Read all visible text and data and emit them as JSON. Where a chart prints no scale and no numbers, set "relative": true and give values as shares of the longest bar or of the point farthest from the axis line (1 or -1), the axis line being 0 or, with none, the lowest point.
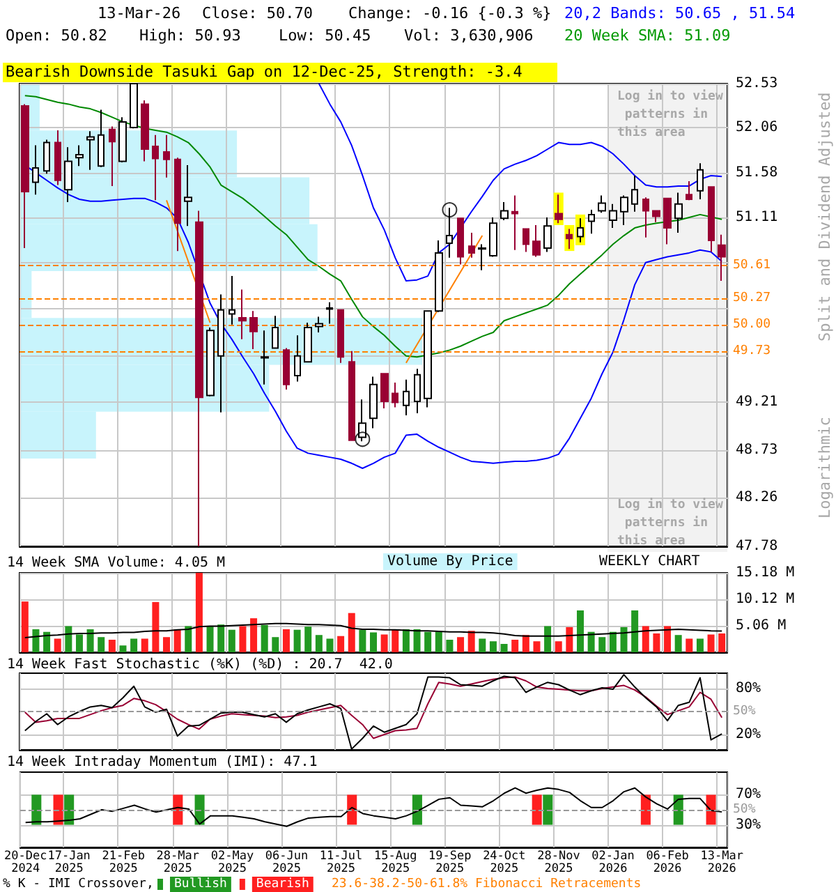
{
  "chart_data": [
    {
      "type": "candlestick",
      "log": true,
      "grid": true,
      "tick_labels": "y",
      "ylabel": "Split and Dividend Adjusted",
      "categories": [
        null,
        null,
        null,
        null,
        null,
        null,
        null,
        null,
        null,
        null,
        null,
        null,
        null,
        null,
        null,
        null,
        null,
        null,
        null,
        null,
        null,
        null,
        null,
        null,
        null,
        null,
        null,
        null,
        null,
        null,
        null,
        null,
        null,
        null,
        null,
        null,
        null,
        null,
        null,
        null,
        null,
        null,
        null,
        null,
        null,
        null,
        null,
        null,
        null,
        null,
        null,
        null,
        null,
        null,
        null,
        null,
        null,
        null,
        null,
        null,
        null,
        null,
        null,
        null,
        null
      ],
      "ylim": [
        47.78,
        52.53
      ],
      "yticks": [
        47.78,
        48.26,
        48.73,
        49.21,
        {
          "value": 49.68,
          "label": null
        },
        {
          "value": 50.16,
          "label": null
        },
        {
          "value": 50.64,
          "label": null
        },
        51.11,
        51.58,
        52.06,
        52.53
      ],
      "ohlc": [
        [
          52.29,
          52.31,
          50.79,
          51.38
        ],
        [
          51.48,
          51.87,
          51.35,
          51.63
        ],
        [
          51.6,
          51.93,
          51.57,
          51.9
        ],
        [
          51.9,
          52.03,
          51.45,
          51.5
        ],
        [
          51.4,
          51.85,
          51.27,
          51.7
        ],
        [
          51.74,
          51.87,
          51.65,
          51.77
        ],
        [
          51.93,
          52.02,
          51.61,
          51.96
        ],
        [
          51.65,
          52.25,
          51.64,
          51.98
        ],
        [
          52.04,
          52.07,
          51.44,
          51.91
        ],
        [
          51.7,
          52.17,
          51.69,
          52.12
        ],
        [
          52.06,
          52.53,
          52.05,
          52.53
        ],
        [
          52.31,
          52.35,
          51.7,
          51.83
        ],
        [
          51.86,
          51.98,
          51.29,
          51.73
        ],
        [
          51.8,
          51.98,
          51.53,
          51.72
        ],
        [
          51.72,
          51.74,
          50.76,
          51.05
        ],
        [
          51.28,
          51.66,
          51.02,
          51.32
        ],
        [
          51.06,
          51.18,
          47.78,
          49.26
        ],
        [
          49.28,
          49.97,
          49.27,
          49.94
        ],
        [
          49.68,
          50.31,
          49.11,
          50.15
        ],
        [
          50.11,
          50.5,
          50.0,
          50.15
        ],
        [
          50.07,
          50.36,
          49.85,
          50.04
        ],
        [
          50.07,
          50.14,
          49.75,
          49.93
        ],
        [
          49.66,
          49.94,
          49.39,
          49.67
        ],
        [
          49.76,
          50.09,
          49.76,
          49.97
        ],
        [
          49.74,
          49.76,
          49.34,
          49.39
        ],
        [
          49.48,
          49.89,
          49.42,
          49.68
        ],
        [
          49.62,
          50.02,
          49.62,
          49.97
        ],
        [
          49.98,
          50.08,
          49.92,
          50.01
        ],
        [
          50.16,
          50.23,
          50.01,
          50.17
        ],
        [
          50.15,
          50.15,
          49.61,
          49.67
        ],
        [
          49.62,
          49.73,
          48.83,
          48.83
        ],
        [
          48.86,
          49.24,
          48.82,
          49.0
        ],
        [
          49.05,
          49.47,
          48.95,
          49.39
        ],
        [
          49.5,
          49.5,
          49.15,
          49.22
        ],
        [
          49.3,
          49.41,
          49.16,
          49.21
        ],
        [
          49.18,
          49.44,
          49.08,
          49.32
        ],
        [
          49.22,
          49.55,
          49.1,
          49.49
        ],
        [
          49.25,
          50.14,
          49.16,
          50.14
        ],
        [
          50.14,
          50.87,
          50.13,
          50.74
        ],
        [
          50.84,
          51.21,
          50.69,
          50.92
        ],
        [
          51.1,
          51.1,
          50.62,
          50.7
        ],
        [
          50.81,
          50.95,
          50.69,
          50.74
        ],
        [
          50.78,
          50.83,
          50.56,
          50.79
        ],
        [
          50.71,
          51.11,
          50.7,
          51.05
        ],
        [
          51.1,
          51.27,
          51.08,
          51.18
        ],
        [
          51.17,
          51.34,
          50.77,
          51.15
        ],
        [
          50.99,
          50.99,
          50.75,
          50.83
        ],
        [
          50.86,
          51.03,
          50.7,
          50.72
        ],
        [
          50.79,
          51.11,
          50.75,
          51.02
        ],
        [
          51.15,
          51.35,
          51.05,
          51.09
        ],
        [
          50.93,
          50.99,
          50.78,
          50.89
        ],
        [
          50.91,
          51.1,
          50.85,
          51.0
        ],
        [
          51.07,
          51.19,
          50.94,
          51.14
        ],
        [
          51.18,
          51.34,
          51.16,
          51.26
        ],
        [
          51.08,
          51.25,
          51.0,
          51.18
        ],
        [
          51.17,
          51.34,
          51.03,
          51.32
        ],
        [
          51.25,
          51.55,
          51.17,
          51.4
        ],
        [
          51.3,
          51.32,
          50.9,
          51.18
        ],
        [
          51.18,
          51.18,
          51.06,
          51.12
        ],
        [
          51.31,
          51.31,
          50.83,
          51.0
        ],
        [
          51.1,
          51.37,
          50.95,
          51.25
        ],
        [
          51.35,
          51.49,
          51.29,
          51.3
        ],
        [
          51.39,
          51.68,
          51.3,
          51.61
        ],
        [
          51.43,
          51.43,
          50.75,
          50.87
        ],
        [
          50.82,
          50.93,
          50.45,
          50.7
        ]
      ],
      "colors": [
        "#990033",
        "#ffffff",
        "#ffffff",
        "#990033",
        "#ffffff",
        "#ffffff",
        "#ffffff",
        "#ffffff",
        "#990033",
        "#ffffff",
        "#ffffff",
        "#990033",
        "#990033",
        "#990033",
        "#990033",
        "#ffffff",
        "#990033",
        "#ffffff",
        "#ffffff",
        "#ffffff",
        "#990033",
        "#990033",
        "#ffffff",
        "#ffffff",
        "#990033",
        "#ffffff",
        "#ffffff",
        "#ffffff",
        "#ffffff",
        "#990033",
        "#990033",
        "#ffffff",
        "#ffffff",
        "#990033",
        "#990033",
        "#ffffff",
        "#ffffff",
        "#ffffff",
        "#ffffff",
        "#ffffff",
        "#990033",
        "#990033",
        "#ffffff",
        "#ffffff",
        "#ffffff",
        "#990033",
        "#990033",
        "#990033",
        "#ffffff",
        "#990033",
        "#990033",
        "#ffffff",
        "#ffffff",
        "#ffffff",
        "#ffffff",
        "#ffffff",
        "#ffffff",
        "#990033",
        "#990033",
        "#990033",
        "#ffffff",
        "#990033",
        "#ffffff",
        "#990033",
        "#990033"
      ],
      "series": [
        {
          "type": "line",
          "color": "#0000ff",
          "values": [
            null,
            null,
            null,
            null,
            null,
            null,
            null,
            null,
            null,
            null,
            null,
            null,
            null,
            null,
            null,
            null,
            null,
            null,
            null,
            null,
            null,
            null,
            null,
            null,
            null,
            null,
            null,
            52.53,
            52.31,
            52.12,
            51.87,
            51.55,
            51.21,
            50.98,
            50.69,
            50.45,
            50.46,
            50.5,
            50.74,
            50.83,
            null,
            51.17,
            51.33,
            51.5,
            51.62,
            51.67,
            51.71,
            51.76,
            51.83,
            51.9,
            51.88,
            51.88,
            51.9,
            51.86,
            51.78,
            51.67,
            51.55,
            51.45,
            51.43,
            51.43,
            51.44,
            51.44,
            51.51,
            51.55,
            51.54
          ]
        },
        {
          "type": "line",
          "color": "#0000ff",
          "values": [
            51.66,
            51.58,
            51.5,
            51.42,
            51.35,
            51.3,
            51.28,
            51.28,
            51.29,
            51.3,
            51.31,
            51.31,
            51.27,
            51.21,
            51.1,
            50.85,
            null,
            50.22,
            50.01,
            49.85,
            49.67,
            49.5,
            49.3,
            49.12,
            48.92,
            48.75,
            48.7,
            48.68,
            48.66,
            48.64,
            48.6,
            48.55,
            48.6,
            48.66,
            48.7,
            48.88,
            48.89,
            48.82,
            48.76,
            48.71,
            48.66,
            48.62,
            48.61,
            48.6,
            48.61,
            48.62,
            48.62,
            48.63,
            48.65,
            48.69,
            48.85,
            49.05,
            49.25,
            49.5,
            49.72,
            50.05,
            50.41,
            50.64,
            50.67,
            50.7,
            50.72,
            50.74,
            50.77,
            50.75,
            50.65
          ]
        },
        {
          "type": "line",
          "color": "#008800",
          "values": [
            52.4,
            52.39,
            52.36,
            52.33,
            52.31,
            52.28,
            52.26,
            52.22,
            52.17,
            52.12,
            null,
            52.05,
            52.03,
            52.01,
            51.96,
            51.9,
            51.78,
            51.64,
            51.45,
            51.38,
            51.31,
            51.22,
            51.12,
            51.02,
            50.93,
            50.8,
            50.67,
            50.6,
            50.52,
            50.45,
            50.26,
            50.08,
            49.98,
            49.89,
            49.78,
            49.68,
            49.67,
            null,
            49.71,
            49.74,
            49.78,
            49.83,
            49.88,
            49.92,
            50.04,
            50.08,
            50.12,
            50.16,
            50.2,
            50.3,
            50.42,
            50.52,
            50.62,
            50.72,
            50.83,
            50.92,
            51.0,
            51.03,
            51.05,
            null,
            51.08,
            51.11,
            51.14,
            null,
            51.09
          ]
        },
        {
          "type": "line",
          "color": "#ff8000",
          "values": [
            null,
            null,
            null,
            null,
            null,
            null,
            null,
            null,
            null,
            null,
            null,
            null,
            null,
            51.29,
            null,
            null,
            null,
            50.02,
            null,
            null,
            null,
            null,
            null,
            null,
            null,
            null,
            null,
            null,
            null,
            null,
            null,
            null,
            null,
            null,
            null,
            null,
            null,
            null,
            null,
            null,
            null,
            null,
            null,
            null,
            null,
            null,
            null,
            null,
            null,
            null,
            null,
            null,
            null,
            null,
            null,
            null,
            null,
            null,
            null,
            null,
            null,
            null,
            null,
            null,
            null
          ]
        },
        {
          "type": "line",
          "color": "#ff8000",
          "values": [
            null,
            null,
            null,
            null,
            null,
            null,
            null,
            null,
            null,
            null,
            null,
            null,
            null,
            null,
            null,
            null,
            null,
            null,
            null,
            null,
            null,
            null,
            null,
            null,
            null,
            null,
            null,
            null,
            null,
            null,
            null,
            null,
            null,
            null,
            null,
            49.61,
            null,
            null,
            null,
            null,
            null,
            null,
            50.92,
            null,
            null,
            null,
            null,
            null,
            null,
            null,
            null,
            null,
            null,
            null,
            null,
            null,
            null,
            null,
            null,
            null,
            null,
            null,
            null,
            null,
            null
          ]
        },
        {
          "type": "bar",
          "color": "#ffff00",
          "base": [
            null,
            null,
            null,
            null,
            null,
            null,
            null,
            null,
            null,
            null,
            null,
            null,
            null,
            null,
            null,
            null,
            null,
            null,
            null,
            null,
            null,
            null,
            null,
            null,
            null,
            null,
            null,
            null,
            null,
            null,
            null,
            null,
            null,
            null,
            null,
            null,
            null,
            null,
            null,
            null,
            null,
            null,
            null,
            null,
            null,
            null,
            null,
            null,
            null,
            51.03,
            50.76,
            50.82,
            null,
            null,
            null,
            null,
            null,
            null,
            null,
            null,
            null,
            null,
            null,
            null,
            null
          ],
          "values": [
            null,
            null,
            null,
            null,
            null,
            null,
            null,
            null,
            null,
            null,
            null,
            null,
            null,
            null,
            null,
            null,
            null,
            null,
            null,
            null,
            null,
            null,
            null,
            null,
            null,
            null,
            null,
            null,
            null,
            null,
            null,
            null,
            null,
            null,
            null,
            null,
            null,
            null,
            null,
            null,
            null,
            null,
            null,
            null,
            null,
            null,
            null,
            null,
            null,
            0.34,
            0.27,
            0.32,
            null,
            null,
            null,
            null,
            null,
            null,
            null,
            null,
            null,
            null,
            null,
            null,
            null
          ]
        },
        {
          "type": "scatter",
          "marker": "circle",
          "color": "#000000",
          "values": [
            null,
            null,
            null,
            null,
            null,
            null,
            null,
            null,
            null,
            null,
            null,
            null,
            null,
            null,
            null,
            null,
            null,
            null,
            null,
            null,
            null,
            null,
            null,
            null,
            null,
            null,
            null,
            null,
            null,
            null,
            null,
            48.84,
            null,
            null,
            null,
            null,
            null,
            null,
            null,
            51.19,
            null,
            null,
            null,
            null,
            null,
            null,
            null,
            null,
            null,
            null,
            null,
            null,
            null,
            null,
            null,
            null,
            null,
            null,
            null,
            null,
            null,
            null,
            null,
            null,
            null
          ]
        }
      ],
      "ref_lines": [
        {
          "axis": "y",
          "value": 50.61,
          "label": "50.61",
          "color": "#ff8000",
          "line_style": "dashed"
        },
        {
          "axis": "y",
          "value": 50.27,
          "label": "50.27",
          "color": "#ff8000",
          "line_style": "dashed"
        },
        {
          "axis": "y",
          "value": 50.0,
          "label": "50.00",
          "color": "#ff8000",
          "line_style": "dashed"
        },
        {
          "axis": "y",
          "value": 49.73,
          "label": "49.73",
          "color": "#ff8000",
          "line_style": "dashed"
        }
      ],
      "annotations": [
        "13-Mar-26",
        "Close: 50.70",
        "Change: -0.16 {-0.3 %}",
        "Open: 50.82",
        "High: 50.93",
        "Low: 50.45",
        "Vol: 3,630,906",
        "20,2 Bands: 50.65 , 51.54",
        "20 Week SMA: 51.09",
        "Bearish Downside Tasuki Gap on 12-Dec-25, Strength: -3.4",
        "Log in to view patterns in this area",
        "Log in to view patterns in this area",
        "Logarithmic"
      ]
    },
    {
      "type": "bar",
      "orientation": "horizontal",
      "relative": true,
      "title": "Volume By Price",
      "color": "#c8f4fc",
      "categories": [
        null,
        null,
        null,
        null,
        null,
        null,
        null,
        null
      ],
      "values": [
        0.05,
        0.54,
        0.72,
        0.74,
        0.03,
        1,
        0.62,
        0.19
      ]
    },
    {
      "type": "bar",
      "grid": true,
      "tick_labels": "y",
      "title": "14 Week SMA Volume: 4.05 M",
      "categories": [
        null,
        null,
        null,
        null,
        null,
        null,
        null,
        null,
        null,
        null,
        null,
        null,
        null,
        null,
        null,
        null,
        null,
        null,
        null,
        null,
        null,
        null,
        null,
        null,
        null,
        null,
        null,
        null,
        null,
        null,
        null,
        null,
        null,
        null,
        null,
        null,
        null,
        null,
        null,
        null,
        null,
        null,
        null,
        null,
        null,
        null,
        null,
        null,
        null,
        null,
        null,
        null,
        null,
        null,
        null,
        null,
        null,
        null,
        null,
        null,
        null,
        null,
        null,
        null,
        null
      ],
      "ylim": [
        0,
        15.18
      ],
      "yticks": [
        {
          "value": 5.06,
          "label": "5.06 M"
        },
        {
          "value": 10.12,
          "label": "10.12 M"
        },
        {
          "value": 15.18,
          "label": "15.18 M"
        }
      ],
      "values": [
        9.7,
        4.4,
        3.9,
        2.6,
        5.0,
        3.4,
        4.4,
        2.9,
        2.4,
        1.3,
        2.6,
        2.6,
        9.6,
        2.9,
        4.4,
        5.0,
        15.18,
        5.0,
        5.3,
        4.3,
        5.0,
        6.5,
        5.2,
        2.9,
        4.4,
        4.3,
        4.9,
        3.3,
        2.6,
        3.1,
        7.5,
        4.3,
        3.8,
        3.4,
        4.3,
        4.4,
        4.4,
        3.9,
        3.9,
        2.4,
        2.9,
        4.1,
        2.6,
        2.1,
        1.6,
        2.4,
        3.3,
        2.1,
        5.0,
        2.1,
        4.8,
        8.0,
        3.9,
        2.9,
        3.9,
        4.8,
        8.0,
        5.0,
        3.6,
        5.0,
        3.3,
        2.6,
        2.6,
        3.4,
        3.6
      ],
      "colors": [
        "#ff2020",
        "#229922",
        "#229922",
        "#ff2020",
        "#229922",
        "#229922",
        "#229922",
        "#229922",
        "#ff2020",
        "#229922",
        "#229922",
        "#ff2020",
        "#ff2020",
        "#ff2020",
        "#ff2020",
        "#229922",
        "#ff2020",
        "#229922",
        "#229922",
        "#229922",
        "#ff2020",
        "#ff2020",
        "#229922",
        "#229922",
        "#ff2020",
        "#229922",
        "#229922",
        "#229922",
        "#229922",
        "#ff2020",
        "#ff2020",
        "#229922",
        "#229922",
        "#ff2020",
        "#ff2020",
        "#229922",
        "#229922",
        "#229922",
        "#229922",
        "#229922",
        "#ff2020",
        "#ff2020",
        "#229922",
        "#229922",
        "#229922",
        "#ff2020",
        "#ff2020",
        "#ff2020",
        "#229922",
        "#ff2020",
        "#ff2020",
        "#229922",
        "#229922",
        "#229922",
        "#229922",
        "#229922",
        "#229922",
        "#ff2020",
        "#ff2020",
        "#ff2020",
        "#229922",
        "#ff2020",
        "#229922",
        "#ff2020",
        "#ff2020"
      ],
      "series": [
        {
          "type": "line",
          "color": "#000000",
          "values": [
            2.8,
            3.0,
            3.2,
            3.3,
            3.5,
            3.6,
            3.6,
            3.7,
            3.7,
            3.8,
            3.8,
            4.0,
            4.1,
            4.1,
            4.3,
            4.4,
            4.9,
            5.0,
            5.0,
            5.1,
            5.2,
            5.3,
            5.4,
            5.5,
            5.5,
            5.4,
            5.3,
            5.3,
            5.2,
            5.1,
            4.6,
            4.4,
            4.4,
            4.3,
            4.3,
            4.2,
            4.1,
            4.1,
            4.0,
            3.9,
            3.9,
            3.8,
            3.8,
            3.7,
            3.5,
            3.2,
            3.1,
            3.1,
            3.1,
            3.1,
            3.2,
            3.3,
            3.4,
            3.5,
            3.6,
            3.7,
            3.9,
            4.1,
            4.2,
            4.3,
            4.4,
            4.3,
            4.2,
            4.1,
            4.05
          ]
        }
      ],
      "annotations": [
        "WEEKLY CHART"
      ]
    },
    {
      "type": "line",
      "grid": true,
      "tick_labels": "y",
      "title": "14 Week Fast Stochastic (%K) (%D) : 20.7  42.0",
      "categories": [
        null,
        null,
        null,
        null,
        null,
        null,
        null,
        null,
        null,
        null,
        null,
        null,
        null,
        null,
        null,
        null,
        null,
        null,
        null,
        null,
        null,
        null,
        null,
        null,
        null,
        null,
        null,
        null,
        null,
        null,
        null,
        null,
        null,
        null,
        null,
        null,
        null,
        null,
        null,
        null,
        null,
        null,
        null,
        null,
        null,
        null,
        null,
        null,
        null,
        null,
        null,
        null,
        null,
        null,
        null,
        null,
        null,
        null,
        null,
        null,
        null,
        null,
        null,
        null,
        null
      ],
      "ylim": [
        0,
        100
      ],
      "yticks": [
        {
          "value": 20,
          "label": "20%"
        },
        {
          "value": 80,
          "label": "80%"
        }
      ],
      "ref_lines": [
        {
          "axis": "y",
          "value": 50,
          "label": "50%",
          "color": "#999999",
          "line_style": "dashed"
        }
      ],
      "series": [
        {
          "color": "#990033",
          "values": [
            49,
            36,
            38,
            41,
            41,
            41,
            46,
            51,
            55,
            58,
            67,
            64,
            59,
            50,
            40,
            33,
            27,
            40,
            44,
            47,
            46,
            45,
            44,
            42,
            43,
            45,
            49,
            52,
            55,
            58,
            45,
            33,
            15,
            20,
            25,
            26,
            28,
            60,
            88,
            86,
            83,
            86,
            89,
            92,
            94,
            95,
            90,
            82,
            80,
            79,
            78,
            77,
            77,
            80,
            82,
            84,
            78,
            69,
            57,
            46,
            51,
            56,
            75,
            66,
            42
          ]
        },
        {
          "color": "#000000",
          "values": [
            25,
            37,
            47,
            33,
            43,
            50,
            56,
            58,
            55,
            68,
            83,
            56,
            49,
            53,
            18,
            31,
            32,
            40,
            48,
            49,
            49,
            46,
            43,
            47,
            36,
            47,
            52,
            56,
            60,
            54,
            1,
            15,
            31,
            23,
            28,
            33,
            47,
            95,
            95,
            94,
            85,
            84,
            83,
            90,
            96,
            94,
            75,
            82,
            88,
            85,
            78,
            72,
            77,
            81,
            79,
            98,
            82,
            68,
            56,
            38,
            58,
            62,
            94,
            13,
            20.7
          ]
        }
      ]
    },
    {
      "type": "line",
      "grid": true,
      "legend": "bottom",
      "title": "14 Week Intraday Momentum (IMI): 47.1",
      "categories": [
        "20-Dec 2024",
        null,
        null,
        null,
        "17-Jan 2025",
        null,
        null,
        null,
        null,
        "21-Feb 2025",
        null,
        null,
        null,
        null,
        "28-Mar 2025",
        null,
        null,
        null,
        null,
        "02-May 2025",
        null,
        null,
        null,
        null,
        "06-Jun 2025",
        null,
        null,
        null,
        null,
        "11-Jul 2025",
        null,
        null,
        null,
        null,
        "15-Aug 2025",
        null,
        null,
        null,
        null,
        "19-Sep 2025",
        null,
        null,
        null,
        null,
        "24-Oct 2025",
        null,
        null,
        null,
        null,
        "28-Nov 2025",
        null,
        null,
        null,
        null,
        "02-Jan 2026",
        null,
        null,
        null,
        null,
        "06-Feb 2026",
        null,
        null,
        null,
        null,
        "13-Mar 2026"
      ],
      "ylim": [
        0,
        100
      ],
      "yticks": [
        {
          "value": 30,
          "label": "30%"
        },
        {
          "value": 70,
          "label": "70%"
        }
      ],
      "ref_lines": [
        {
          "axis": "y",
          "value": 50,
          "label": "50%",
          "color": "#999999",
          "line_style": "dashed"
        }
      ],
      "series": [
        {
          "name": "Bullish",
          "type": "bar",
          "color": "#229922",
          "base": [
            null,
            30,
            null,
            null,
            30,
            null,
            null,
            null,
            null,
            null,
            null,
            null,
            null,
            null,
            null,
            null,
            30,
            null,
            null,
            null,
            null,
            null,
            null,
            null,
            null,
            null,
            null,
            null,
            null,
            null,
            null,
            null,
            null,
            null,
            null,
            null,
            30,
            null,
            null,
            null,
            null,
            null,
            null,
            null,
            null,
            null,
            null,
            null,
            30,
            null,
            null,
            null,
            null,
            null,
            null,
            null,
            null,
            null,
            null,
            null,
            30,
            null,
            null,
            null,
            null
          ],
          "values": [
            null,
            40,
            null,
            null,
            40,
            null,
            null,
            null,
            null,
            null,
            null,
            null,
            null,
            null,
            null,
            null,
            40,
            null,
            null,
            null,
            null,
            null,
            null,
            null,
            null,
            null,
            null,
            null,
            null,
            null,
            null,
            null,
            null,
            null,
            null,
            null,
            40,
            null,
            null,
            null,
            null,
            null,
            null,
            null,
            null,
            null,
            null,
            null,
            40,
            null,
            null,
            null,
            null,
            null,
            null,
            null,
            null,
            null,
            null,
            null,
            40,
            null,
            null,
            null,
            null
          ]
        },
        {
          "name": "Bearish",
          "type": "bar",
          "color": "#ff2020",
          "base": [
            null,
            null,
            null,
            30,
            null,
            null,
            null,
            null,
            null,
            null,
            null,
            null,
            null,
            null,
            30,
            null,
            null,
            null,
            null,
            null,
            null,
            null,
            null,
            null,
            null,
            null,
            null,
            null,
            null,
            null,
            30,
            null,
            null,
            null,
            null,
            null,
            null,
            null,
            null,
            null,
            null,
            null,
            null,
            null,
            null,
            null,
            null,
            30,
            null,
            null,
            null,
            null,
            null,
            null,
            null,
            null,
            null,
            30,
            null,
            null,
            null,
            null,
            null,
            30,
            null
          ],
          "values": [
            null,
            null,
            null,
            40,
            null,
            null,
            null,
            null,
            null,
            null,
            null,
            null,
            null,
            null,
            40,
            null,
            null,
            null,
            null,
            null,
            null,
            null,
            null,
            null,
            null,
            null,
            null,
            null,
            null,
            null,
            40,
            null,
            null,
            null,
            null,
            null,
            null,
            null,
            null,
            null,
            null,
            null,
            null,
            null,
            null,
            null,
            null,
            40,
            null,
            null,
            null,
            null,
            null,
            null,
            null,
            null,
            null,
            40,
            null,
            null,
            null,
            null,
            null,
            40,
            null
          ]
        },
        {
          "type": "line",
          "color": "#000000",
          "values": [
            33,
            34,
            34,
            35,
            36,
            38,
            44,
            50,
            48,
            52,
            56,
            51,
            47,
            50,
            53,
            51,
            31,
            42,
            42,
            42,
            40,
            38,
            34,
            31,
            28,
            34,
            39,
            40,
            41,
            41,
            53,
            45,
            42,
            40,
            38,
            42,
            48,
            56,
            64,
            66,
            56,
            55,
            54,
            62,
            72,
            79,
            72,
            76,
            79,
            77,
            73,
            62,
            53,
            53,
            62,
            74,
            79,
            67,
            58,
            51,
            64,
            65,
            65,
            49,
            47.1
          ]
        }
      ],
      "annotations": [
        "% K - IMI Crossover,",
        "23.6-38.2-50-61.8% Fibonacci Retracements"
      ]
    }
  ]
}
